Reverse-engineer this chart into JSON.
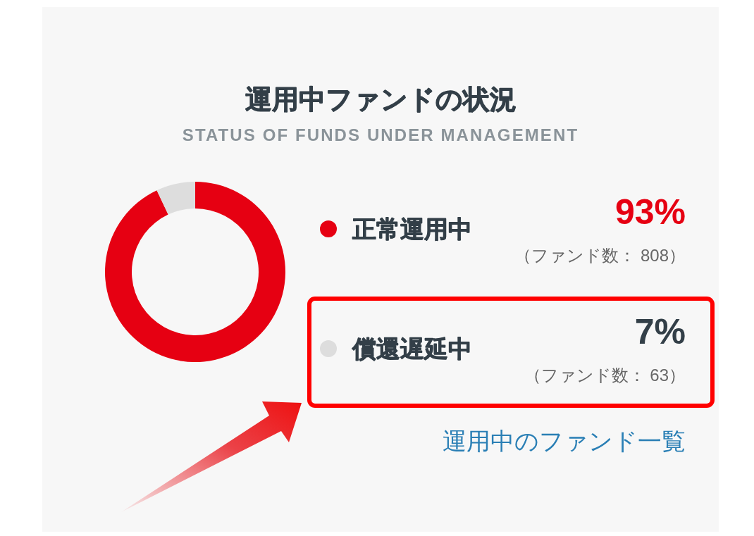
{
  "chart_data": {
    "type": "donut",
    "title": "運用中ファンドの状況",
    "subtitle": "STATUS OF FUNDS UNDER MANAGEMENT",
    "categories": [
      "正常運用中",
      "償還遅延中"
    ],
    "values": [
      93,
      7
    ],
    "colors": [
      "#e60012",
      "#dddddd"
    ],
    "value_labels": [
      "93%",
      "7%"
    ],
    "legend": "right",
    "annotations": [
      "（ファンド数： 808）",
      "（ファンド数： 63）",
      "運用中のファンド一覧"
    ]
  }
}
